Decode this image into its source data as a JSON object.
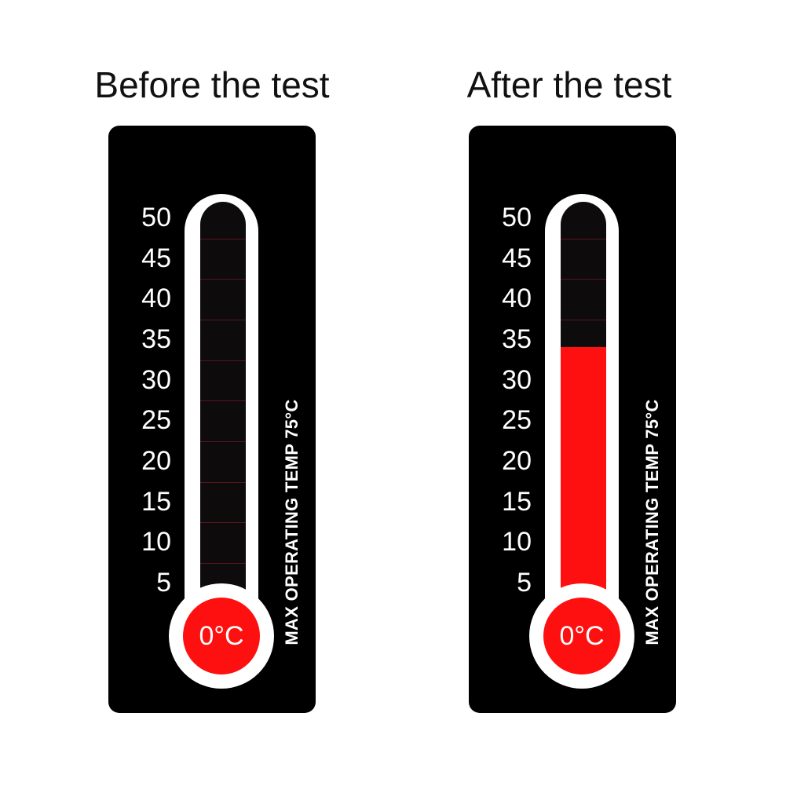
{
  "panels": [
    {
      "title": "Before the test",
      "fill_level_c": 0
    },
    {
      "title": "After the test",
      "fill_level_c": 34
    }
  ],
  "scale": [
    "50",
    "45",
    "40",
    "35",
    "30",
    "25",
    "20",
    "15",
    "10",
    "5"
  ],
  "bulb_label": "0°C",
  "side_label": "MAX OPERATING TEMP 75°C",
  "colors": {
    "card": "#000000",
    "indicator": "#ff1010",
    "outline": "#ffffff"
  }
}
